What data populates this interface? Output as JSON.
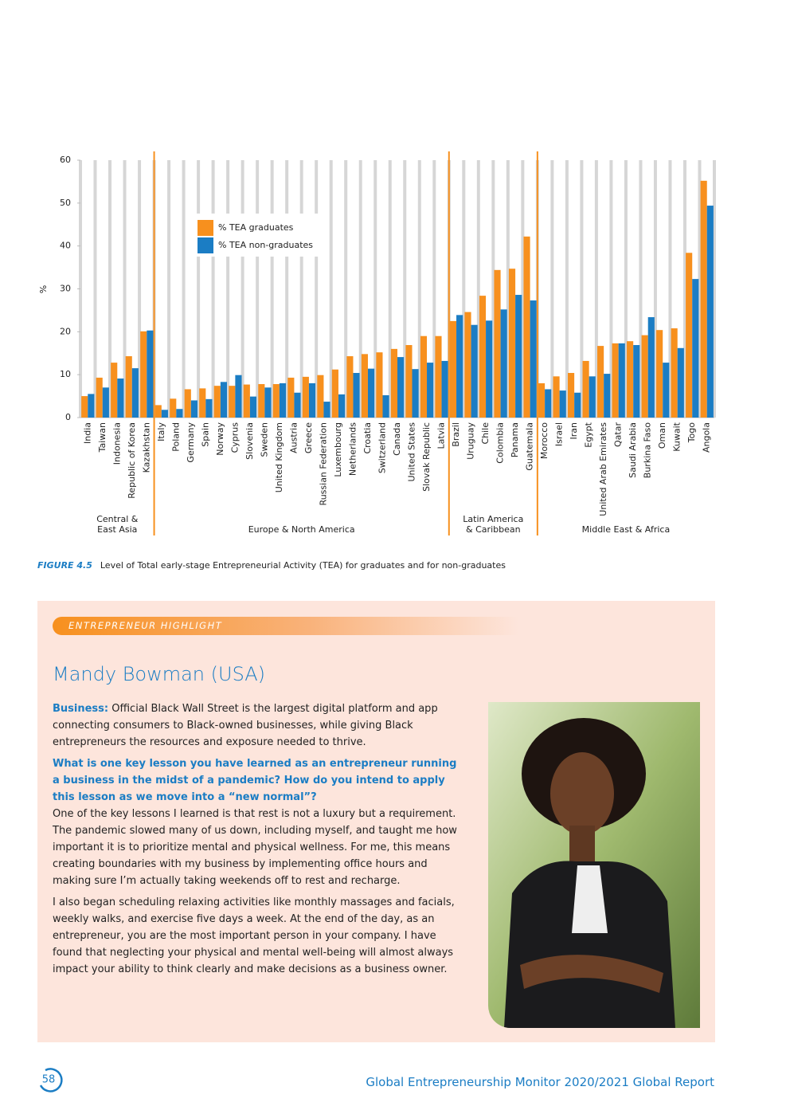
{
  "chart_data": {
    "type": "bar",
    "y_label": "%",
    "ylim": [
      0,
      60
    ],
    "yticks": [
      0,
      10,
      20,
      30,
      40,
      50,
      60
    ],
    "legend": "upper-left",
    "groups": [
      {
        "name": [
          "Central &",
          "East Asia"
        ],
        "categories": [
          "India",
          "Taiwan",
          "Indonesia",
          "Republic of Korea",
          "Kazakhstan"
        ]
      },
      {
        "name": [
          "Europe & North America"
        ],
        "categories": [
          "Italy",
          "Poland",
          "Germany",
          "Spain",
          "Norway",
          "Cyprus",
          "Slovenia",
          "Sweden",
          "United Kingdom",
          "Austria",
          "Greece",
          "Russian Federation",
          "Luxembourg",
          "Netherlands",
          "Croatia",
          "Switzerland",
          "Canada",
          "United States",
          "Slovak Republic",
          "Latvia"
        ]
      },
      {
        "name": [
          "Latin America",
          "& Caribbean"
        ],
        "categories": [
          "Brazil",
          "Uruguay",
          "Chile",
          "Colombia",
          "Panama",
          "Guatemala"
        ]
      },
      {
        "name": [
          "Middle East & Africa"
        ],
        "categories": [
          "Morocco",
          "Israel",
          "Iran",
          "Egypt",
          "United Arab Emirates",
          "Qatar",
          "Saudi Arabia",
          "Burkina Faso",
          "Oman",
          "Kuwait",
          "Togo",
          "Angola"
        ]
      }
    ],
    "series": [
      {
        "name": "% TEA graduates",
        "color": "#f7901e",
        "values": [
          5.0,
          9.3,
          12.8,
          14.3,
          20.1,
          2.9,
          4.4,
          6.6,
          6.8,
          7.4,
          7.4,
          7.7,
          7.8,
          7.8,
          9.3,
          9.5,
          9.9,
          11.2,
          14.3,
          14.8,
          15.2,
          16.0,
          16.9,
          19.0,
          19.0,
          22.5,
          24.6,
          28.4,
          34.4,
          34.7,
          42.2,
          8.0,
          9.6,
          10.4,
          13.2,
          16.7,
          17.3,
          17.8,
          19.2,
          20.4,
          20.8,
          38.4,
          55.2
        ]
      },
      {
        "name": "% TEA non-graduates",
        "color": "#1b7dc4",
        "values": [
          5.5,
          7.0,
          9.1,
          11.5,
          20.3,
          1.8,
          2.0,
          4.0,
          4.3,
          8.3,
          9.9,
          4.9,
          7.0,
          8.0,
          5.8,
          8.0,
          3.7,
          5.4,
          10.4,
          11.4,
          5.2,
          14.1,
          11.3,
          12.8,
          13.2,
          23.9,
          21.6,
          22.6,
          25.2,
          28.6,
          27.3,
          6.6,
          6.3,
          5.8,
          9.6,
          10.2,
          17.3,
          16.9,
          23.4,
          12.8,
          16.2,
          32.3,
          49.4
        ]
      }
    ]
  },
  "figure": {
    "number": "FIGURE 4.5",
    "caption": "Level of Total early-stage Entrepreneurial Activity (TEA) for graduates and for non-graduates"
  },
  "highlight": {
    "tag": "ENTREPRENEUR HIGHLIGHT",
    "name": "Mandy Bowman (USA)",
    "business_label": "Business:",
    "business_text": " Official Black Wall Street is the largest digital platform and app connecting consumers to Black-owned businesses, while giving Black entrepreneurs the resources and exposure needed to thrive.",
    "question": "What is one key lesson you have learned as an entrepreneur running a business in the midst of a pandemic? How do you intend to apply this lesson as we move into a “new normal”?",
    "answers": [
      "One of the key lessons I learned is that rest is not a luxury but a requirement. The pandemic slowed many of us down, including myself, and taught me how important it is to prioritize mental and physical wellness. For me, this means creating boundaries with my business by implementing office hours and making sure I’m actually taking weekends off to rest and recharge.",
      "I also began scheduling relaxing activities like monthly massages and facials, weekly walks, and exercise five days a week. At the end of the day, as an entrepreneur, you are the most important person in your company. I have found that neglecting your physical and mental well-being will almost always impact your ability to think clearly and make decisions as a business owner."
    ]
  },
  "footer": {
    "page": "58",
    "report": "Global Entrepreneurship Monitor 2020/2021 Global Report"
  }
}
